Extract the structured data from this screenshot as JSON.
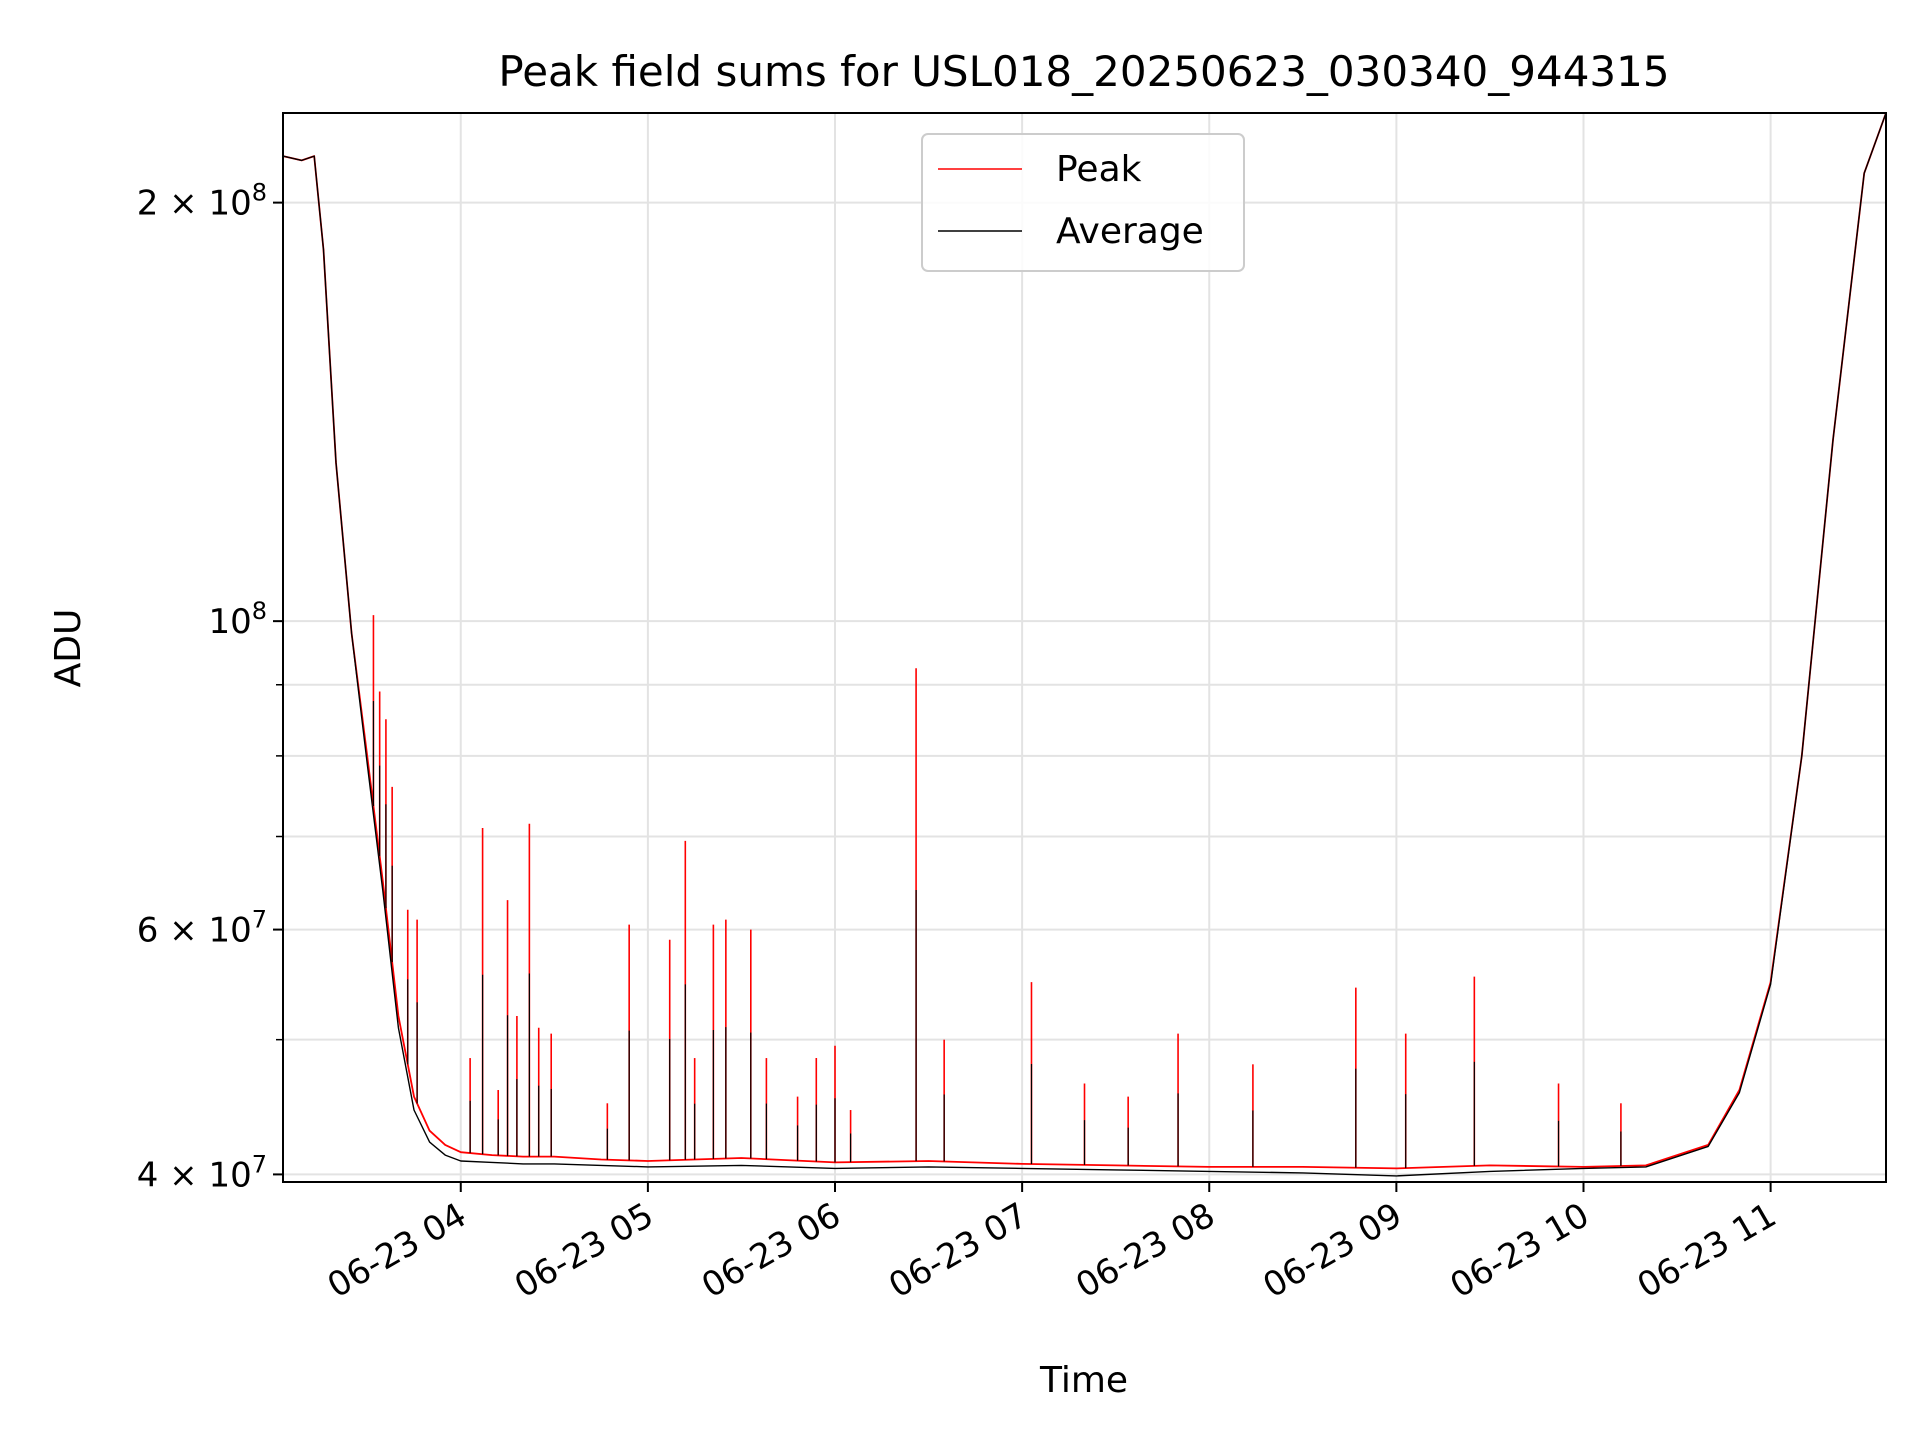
{
  "chart_data": {
    "type": "line",
    "title": "Peak field sums for USL018_20250623_030340_944315",
    "xlabel": "Time",
    "ylabel": "ADU",
    "y_scale": "log",
    "ylim": [
      39500000,
      232000000
    ],
    "xlim": [
      "06-23 03:03",
      "06-23 11:37"
    ],
    "grid": true,
    "legend_position": "upper center",
    "x_ticks": [
      "06-23 04",
      "06-23 05",
      "06-23 06",
      "06-23 07",
      "06-23 08",
      "06-23 09",
      "06-23 10",
      "06-23 11"
    ],
    "x_tick_values": [
      "06-23 04:00",
      "06-23 05:00",
      "06-23 06:00",
      "06-23 07:00",
      "06-23 08:00",
      "06-23 09:00",
      "06-23 10:00",
      "06-23 11:00"
    ],
    "y_ticks": [
      {
        "value": 40000000,
        "base": "4 × 10",
        "exp": "7"
      },
      {
        "value": 60000000,
        "base": "6 × 10",
        "exp": "7"
      },
      {
        "value": 100000000,
        "base": "10",
        "exp": "8"
      },
      {
        "value": 200000000,
        "base": "2 × 10",
        "exp": "8"
      }
    ],
    "series": [
      {
        "name": "Peak",
        "color": "#ff0000",
        "x": [
          "06-23 03:03",
          "06-23 03:09",
          "06-23 03:13",
          "06-23 03:16",
          "06-23 03:20",
          "06-23 03:25",
          "06-23 03:30",
          "06-23 03:35",
          "06-23 03:40",
          "06-23 03:45",
          "06-23 03:50",
          "06-23 03:55",
          "06-23 04:00",
          "06-23 04:10",
          "06-23 04:20",
          "06-23 04:30",
          "06-23 04:45",
          "06-23 05:00",
          "06-23 05:30",
          "06-23 06:00",
          "06-23 06:30",
          "06-23 07:00",
          "06-23 07:30",
          "06-23 08:00",
          "06-23 08:30",
          "06-23 09:00",
          "06-23 09:30",
          "06-23 10:00",
          "06-23 10:20",
          "06-23 10:40",
          "06-23 10:50",
          "06-23 11:00",
          "06-23 11:10",
          "06-23 11:20",
          "06-23 11:30",
          "06-23 11:37"
        ],
        "values": [
          216000000,
          214500000,
          216000000,
          185000000,
          130000000,
          98000000,
          80000000,
          65000000,
          52000000,
          45500000,
          43000000,
          42000000,
          41500000,
          41300000,
          41200000,
          41200000,
          41000000,
          40900000,
          41100000,
          40800000,
          40900000,
          40700000,
          40600000,
          40500000,
          40500000,
          40400000,
          40600000,
          40500000,
          40600000,
          42000000,
          46000000,
          55000000,
          80000000,
          135000000,
          210000000,
          232000000
        ]
      },
      {
        "name": "Average",
        "color": "#000000",
        "x": [
          "06-23 03:03",
          "06-23 03:09",
          "06-23 03:13",
          "06-23 03:16",
          "06-23 03:20",
          "06-23 03:25",
          "06-23 03:30",
          "06-23 03:35",
          "06-23 03:40",
          "06-23 03:45",
          "06-23 03:50",
          "06-23 03:55",
          "06-23 04:00",
          "06-23 04:10",
          "06-23 04:20",
          "06-23 04:30",
          "06-23 04:45",
          "06-23 05:00",
          "06-23 05:30",
          "06-23 06:00",
          "06-23 06:30",
          "06-23 07:00",
          "06-23 07:30",
          "06-23 08:00",
          "06-23 08:30",
          "06-23 09:00",
          "06-23 09:30",
          "06-23 10:00",
          "06-23 10:20",
          "06-23 10:40",
          "06-23 10:50",
          "06-23 11:00",
          "06-23 11:10",
          "06-23 11:20",
          "06-23 11:30",
          "06-23 11:37"
        ],
        "values": [
          216000000,
          214500000,
          216000000,
          185000000,
          130000000,
          98000000,
          79000000,
          64000000,
          51000000,
          44500000,
          42200000,
          41300000,
          40900000,
          40800000,
          40700000,
          40700000,
          40600000,
          40500000,
          40600000,
          40400000,
          40500000,
          40400000,
          40300000,
          40200000,
          40100000,
          39900000,
          40200000,
          40400000,
          40500000,
          41900000,
          45800000,
          54800000,
          80000000,
          135000000,
          210000000,
          232000000
        ]
      }
    ],
    "peak_spikes": [
      {
        "x": "06-23 03:32",
        "value": 101000000
      },
      {
        "x": "06-23 03:34",
        "value": 89000000
      },
      {
        "x": "06-23 03:36",
        "value": 85000000
      },
      {
        "x": "06-23 03:38",
        "value": 76000000
      },
      {
        "x": "06-23 03:43",
        "value": 62000000
      },
      {
        "x": "06-23 03:46",
        "value": 61000000
      },
      {
        "x": "06-23 04:03",
        "value": 48500000
      },
      {
        "x": "06-23 04:07",
        "value": 71000000
      },
      {
        "x": "06-23 04:12",
        "value": 46000000
      },
      {
        "x": "06-23 04:15",
        "value": 63000000
      },
      {
        "x": "06-23 04:18",
        "value": 52000000
      },
      {
        "x": "06-23 04:22",
        "value": 71500000
      },
      {
        "x": "06-23 04:25",
        "value": 51000000
      },
      {
        "x": "06-23 04:29",
        "value": 50500000
      },
      {
        "x": "06-23 04:47",
        "value": 45000000
      },
      {
        "x": "06-23 04:54",
        "value": 60500000
      },
      {
        "x": "06-23 05:07",
        "value": 59000000
      },
      {
        "x": "06-23 05:12",
        "value": 69500000
      },
      {
        "x": "06-23 05:15",
        "value": 48500000
      },
      {
        "x": "06-23 05:21",
        "value": 60500000
      },
      {
        "x": "06-23 05:25",
        "value": 61000000
      },
      {
        "x": "06-23 05:33",
        "value": 60000000
      },
      {
        "x": "06-23 05:38",
        "value": 48500000
      },
      {
        "x": "06-23 05:48",
        "value": 45500000
      },
      {
        "x": "06-23 05:54",
        "value": 48500000
      },
      {
        "x": "06-23 06:00",
        "value": 49500000
      },
      {
        "x": "06-23 06:05",
        "value": 44500000
      },
      {
        "x": "06-23 06:26",
        "value": 92500000
      },
      {
        "x": "06-23 06:35",
        "value": 50000000
      },
      {
        "x": "06-23 07:03",
        "value": 55000000
      },
      {
        "x": "06-23 07:20",
        "value": 46500000
      },
      {
        "x": "06-23 07:34",
        "value": 45500000
      },
      {
        "x": "06-23 07:50",
        "value": 50500000
      },
      {
        "x": "06-23 08:14",
        "value": 48000000
      },
      {
        "x": "06-23 08:47",
        "value": 54500000
      },
      {
        "x": "06-23 09:03",
        "value": 50500000
      },
      {
        "x": "06-23 09:25",
        "value": 55500000
      },
      {
        "x": "06-23 09:52",
        "value": 46500000
      },
      {
        "x": "06-23 10:12",
        "value": 45000000
      }
    ]
  }
}
